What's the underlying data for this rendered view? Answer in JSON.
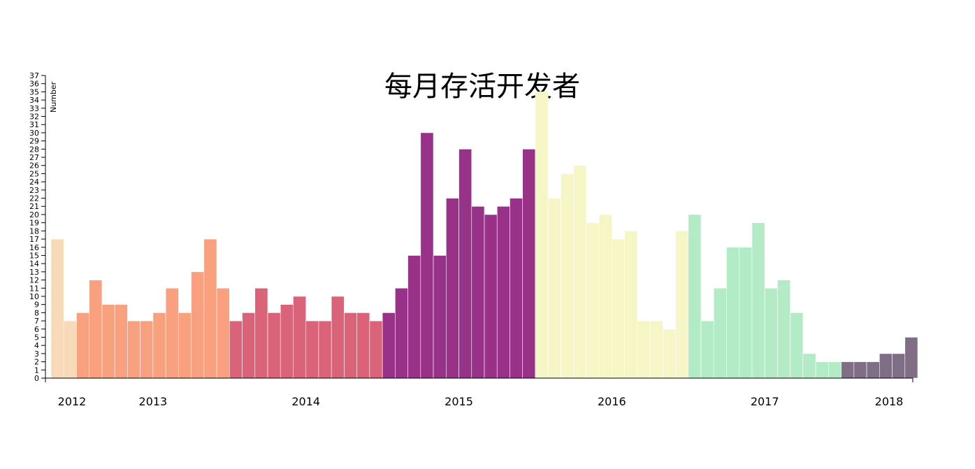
{
  "chart_data": {
    "type": "bar",
    "title": "每月存活开发者",
    "ylabel": "Number",
    "xlabel": "",
    "ylim": [
      0,
      37
    ],
    "y_ticks": [
      0,
      1,
      2,
      3,
      4,
      5,
      6,
      7,
      8,
      9,
      10,
      11,
      12,
      13,
      14,
      15,
      16,
      17,
      18,
      19,
      20,
      21,
      22,
      23,
      24,
      25,
      26,
      27,
      28,
      29,
      30,
      31,
      32,
      33,
      34,
      35,
      36,
      37
    ],
    "x_tick_labels": [
      "2012",
      "2013",
      "2014",
      "2015",
      "2016",
      "2017",
      "2018"
    ],
    "grid": false,
    "series": [
      {
        "year": "2012",
        "color": "#f8d9b8",
        "values": [
          17,
          7
        ]
      },
      {
        "year": "2013",
        "color": "#f9a17e",
        "values": [
          8,
          12,
          9,
          9,
          7,
          7,
          8,
          11,
          8,
          13,
          17,
          11
        ]
      },
      {
        "year": "2014",
        "color": "#da637a",
        "values": [
          7,
          8,
          11,
          8,
          9,
          10,
          7,
          7,
          10,
          8,
          8,
          7
        ]
      },
      {
        "year": "2015",
        "color": "#983289",
        "values": [
          8,
          11,
          15,
          30,
          15,
          22,
          28,
          21,
          20,
          21,
          22,
          28
        ]
      },
      {
        "year": "2016",
        "color": "#f6f5c6",
        "values": [
          35,
          22,
          25,
          26,
          19,
          20,
          17,
          18,
          7,
          7,
          6,
          18
        ]
      },
      {
        "year": "2017",
        "color": "#b2ebc6",
        "values": [
          20,
          7,
          11,
          16,
          16,
          19,
          11,
          12,
          8,
          3,
          2,
          2
        ]
      },
      {
        "year": "2018",
        "color": "#7f6e86",
        "values": [
          2,
          2,
          2,
          3,
          3,
          5
        ]
      }
    ]
  }
}
